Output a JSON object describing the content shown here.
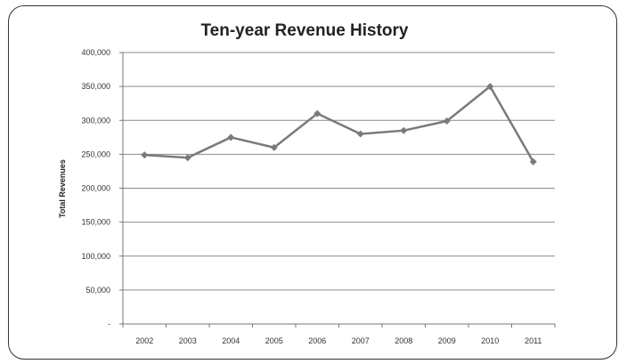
{
  "chart_data": {
    "type": "line",
    "title": "Ten-year Revenue History",
    "xlabel": "",
    "ylabel": "Total Revenues",
    "categories": [
      "2002",
      "2003",
      "2004",
      "2005",
      "2006",
      "2007",
      "2008",
      "2009",
      "2010",
      "2011"
    ],
    "series": [
      {
        "values": [
          249000,
          245000,
          275000,
          260000,
          310000,
          280000,
          285000,
          299000,
          350000,
          239000
        ],
        "color": "#7a7a7a",
        "marker": "diamond"
      }
    ],
    "ylim": [
      0,
      400000
    ],
    "yticks": [
      0,
      50000,
      100000,
      150000,
      200000,
      250000,
      300000,
      350000,
      400000
    ],
    "ytick_labels": [
      "-",
      "50,000",
      "100,000",
      "150,000",
      "200,000",
      "250,000",
      "300,000",
      "350,000",
      "400,000"
    ],
    "grid": true,
    "legend": "none",
    "gridline_color": "#8c8c8c"
  }
}
